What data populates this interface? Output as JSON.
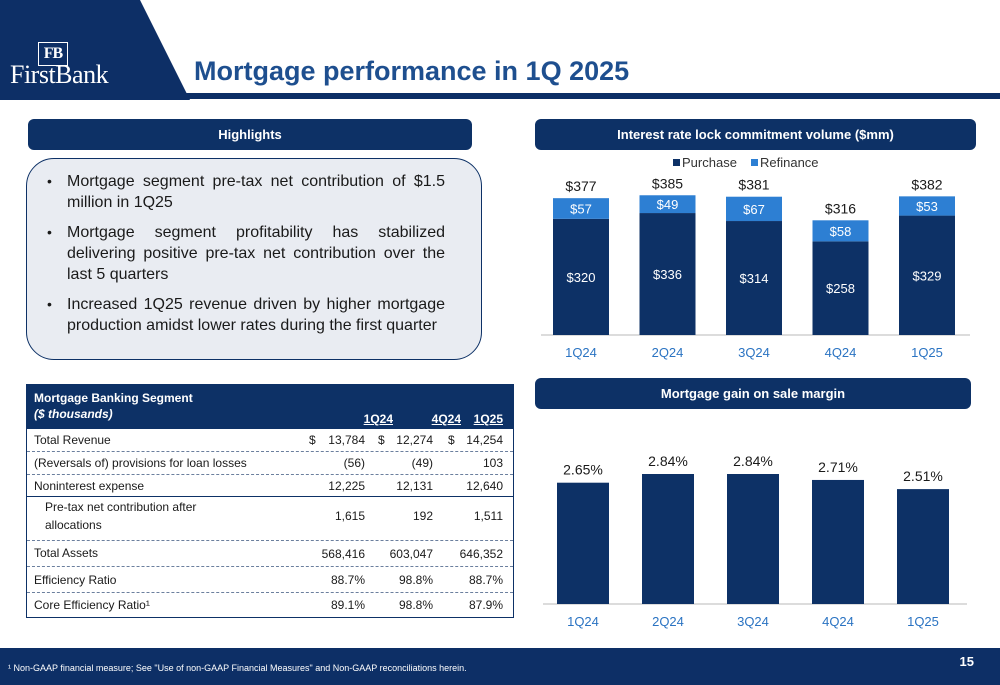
{
  "header": {
    "logo_monogram": "FB",
    "logo_name": "FirstBank",
    "title": "Mortgage performance in 1Q 2025"
  },
  "highlights": {
    "heading": "Highlights",
    "bullets": [
      "Mortgage segment pre-tax net contribution of $1.5 million in 1Q25",
      "Mortgage segment profitability has stabilized delivering positive pre-tax net contribution over the last 5 quarters",
      "Increased 1Q25 revenue driven by higher mortgage production amidst lower rates during the first quarter"
    ]
  },
  "table": {
    "title": "Mortgage Banking Segment",
    "subtitle": "($ thousands)",
    "columns": [
      "1Q24",
      "4Q24",
      "1Q25"
    ],
    "rows": [
      {
        "label": "Total Revenue",
        "values": [
          "13,784",
          "12,274",
          "14,254"
        ],
        "dollar": "$"
      },
      {
        "label": "(Reversals of) provisions for loan losses",
        "values": [
          "(56)",
          "(49)",
          "103"
        ]
      },
      {
        "label": "Noninterest expense",
        "values": [
          "12,225",
          "12,131",
          "12,640"
        ]
      },
      {
        "label": "Pre-tax net contribution after",
        "label2": "allocations",
        "values": [
          "1,615",
          "192",
          "1,511"
        ]
      },
      {
        "label": "Total Assets",
        "values": [
          "568,416",
          "603,047",
          "646,352"
        ]
      },
      {
        "label": "Efficiency Ratio",
        "values": [
          "88.7%",
          "98.8%",
          "88.7%"
        ]
      },
      {
        "label": "Core Efficiency Ratio¹",
        "values": [
          "89.1%",
          "98.8%",
          "87.9%"
        ]
      }
    ]
  },
  "chart_data": [
    {
      "type": "bar",
      "stacked": true,
      "title": "Interest rate lock commitment volume ($mm)",
      "categories": [
        "1Q24",
        "2Q24",
        "3Q24",
        "4Q24",
        "1Q25"
      ],
      "legend_position": "top",
      "series": [
        {
          "name": "Purchase",
          "values": [
            320,
            336,
            314,
            258,
            329
          ],
          "color": "#0d3166",
          "labels": [
            "$320",
            "$336",
            "$314",
            "$258",
            "$329"
          ]
        },
        {
          "name": "Refinance",
          "values": [
            57,
            49,
            67,
            58,
            53
          ],
          "color": "#2d7fd3",
          "labels": [
            "$57",
            "$49",
            "$67",
            "$58",
            "$53"
          ]
        }
      ],
      "totals": [
        "$377",
        "$385",
        "$381",
        "$316",
        "$382"
      ],
      "total_values": [
        377,
        385,
        381,
        316,
        382
      ],
      "ylim": [
        0,
        420
      ]
    },
    {
      "type": "bar",
      "title": "Mortgage gain on sale margin",
      "categories": [
        "1Q24",
        "2Q24",
        "3Q24",
        "4Q24",
        "1Q25"
      ],
      "values": [
        2.65,
        2.84,
        2.84,
        2.71,
        2.51
      ],
      "labels": [
        "2.65%",
        "2.84%",
        "2.84%",
        "2.71%",
        "2.51%"
      ],
      "color": "#0d3166",
      "ylim": [
        0,
        3.4
      ]
    }
  ],
  "footer": {
    "footnote": "¹ Non-GAAP financial measure; See \"Use of non-GAAP Financial Measures\" and Non-GAAP reconciliations herein.",
    "page_number": "15"
  }
}
